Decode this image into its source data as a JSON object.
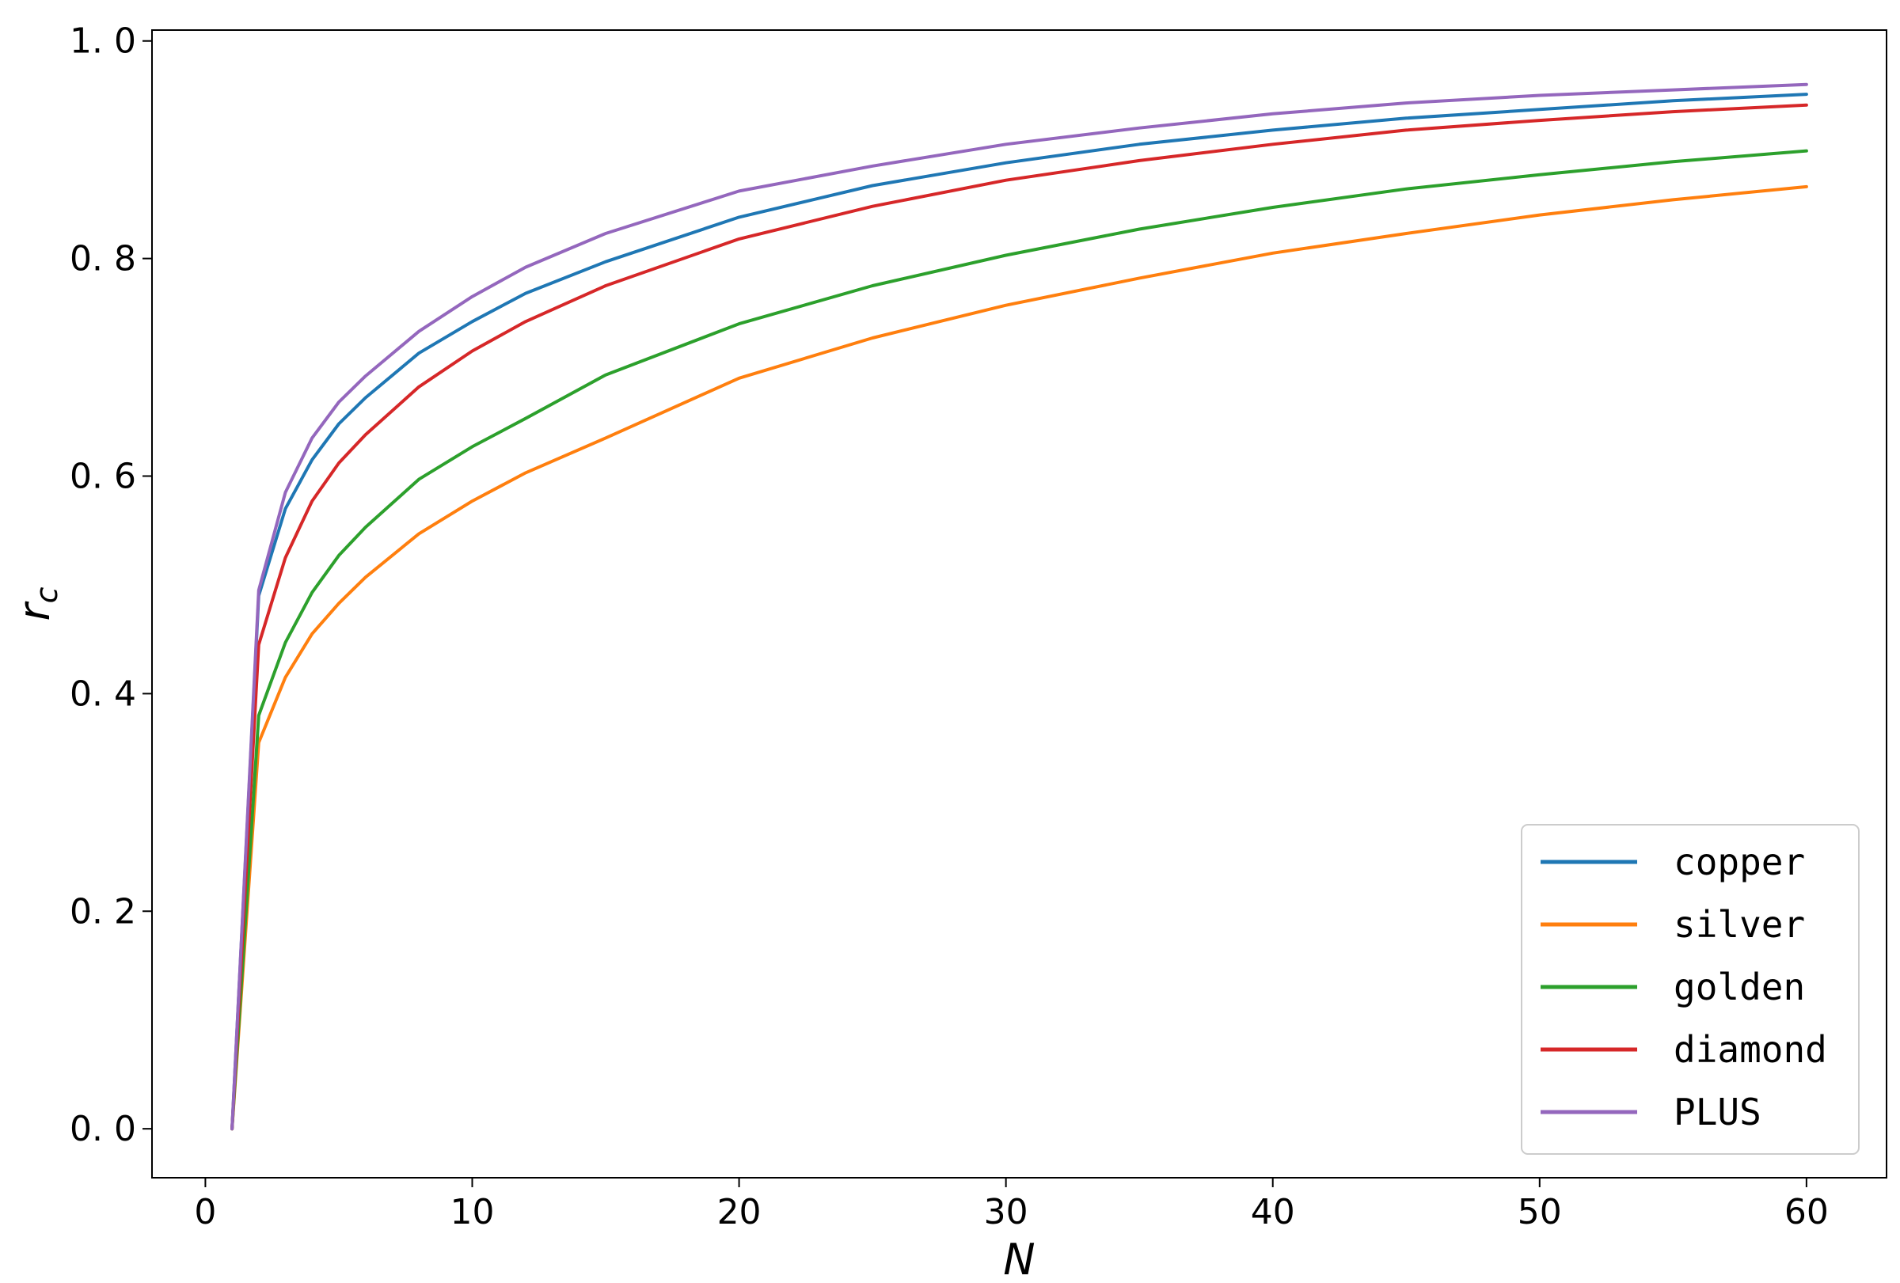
{
  "chart_data": {
    "type": "line",
    "xlabel": "N",
    "ylabel": "r",
    "ylabel_sub": "c",
    "xlim": [
      -2,
      63
    ],
    "ylim": [
      -0.045,
      1.01
    ],
    "xticks": [
      0,
      10,
      20,
      30,
      40,
      50,
      60
    ],
    "yticks": [
      0.0,
      0.2,
      0.4,
      0.6,
      0.8,
      1.0
    ],
    "xtick_labels": [
      "0",
      "10",
      "20",
      "30",
      "40",
      "50",
      "60"
    ],
    "ytick_labels": [
      "0. 0",
      "0. 2",
      "0. 4",
      "0. 6",
      "0. 8",
      "1. 0"
    ],
    "grid": false,
    "legend_position": "lower-right",
    "series": [
      {
        "name": "copper",
        "color": "#1f77b4",
        "x": [
          1,
          2,
          3,
          4,
          5,
          6,
          8,
          10,
          12,
          15,
          20,
          25,
          30,
          35,
          40,
          45,
          50,
          55,
          60
        ],
        "y": [
          0.0,
          0.49,
          0.57,
          0.615,
          0.648,
          0.672,
          0.713,
          0.742,
          0.768,
          0.797,
          0.838,
          0.867,
          0.888,
          0.905,
          0.918,
          0.929,
          0.937,
          0.945,
          0.951
        ]
      },
      {
        "name": "silver",
        "color": "#ff7f0e",
        "x": [
          1,
          2,
          3,
          4,
          5,
          6,
          8,
          10,
          12,
          15,
          20,
          25,
          30,
          35,
          40,
          45,
          50,
          55,
          60
        ],
        "y": [
          0.0,
          0.355,
          0.415,
          0.455,
          0.483,
          0.507,
          0.547,
          0.577,
          0.603,
          0.635,
          0.69,
          0.727,
          0.757,
          0.782,
          0.805,
          0.823,
          0.84,
          0.854,
          0.866
        ]
      },
      {
        "name": "golden",
        "color": "#2ca02c",
        "x": [
          1,
          2,
          3,
          4,
          5,
          6,
          8,
          10,
          12,
          15,
          20,
          25,
          30,
          35,
          40,
          45,
          50,
          55,
          60
        ],
        "y": [
          0.0,
          0.38,
          0.447,
          0.493,
          0.527,
          0.553,
          0.597,
          0.627,
          0.653,
          0.693,
          0.74,
          0.775,
          0.803,
          0.827,
          0.847,
          0.864,
          0.877,
          0.889,
          0.899
        ]
      },
      {
        "name": "diamond",
        "color": "#d62728",
        "x": [
          1,
          2,
          3,
          4,
          5,
          6,
          8,
          10,
          12,
          15,
          20,
          25,
          30,
          35,
          40,
          45,
          50,
          55,
          60
        ],
        "y": [
          0.0,
          0.445,
          0.525,
          0.577,
          0.612,
          0.638,
          0.682,
          0.715,
          0.742,
          0.775,
          0.818,
          0.848,
          0.872,
          0.89,
          0.905,
          0.918,
          0.927,
          0.935,
          0.941
        ]
      },
      {
        "name": "PLUS",
        "color": "#9467bd",
        "x": [
          1,
          2,
          3,
          4,
          5,
          6,
          8,
          10,
          12,
          15,
          20,
          25,
          30,
          35,
          40,
          45,
          50,
          55,
          60
        ],
        "y": [
          0.0,
          0.495,
          0.585,
          0.635,
          0.668,
          0.692,
          0.733,
          0.765,
          0.792,
          0.823,
          0.862,
          0.885,
          0.905,
          0.92,
          0.933,
          0.943,
          0.95,
          0.955,
          0.96
        ]
      }
    ]
  }
}
